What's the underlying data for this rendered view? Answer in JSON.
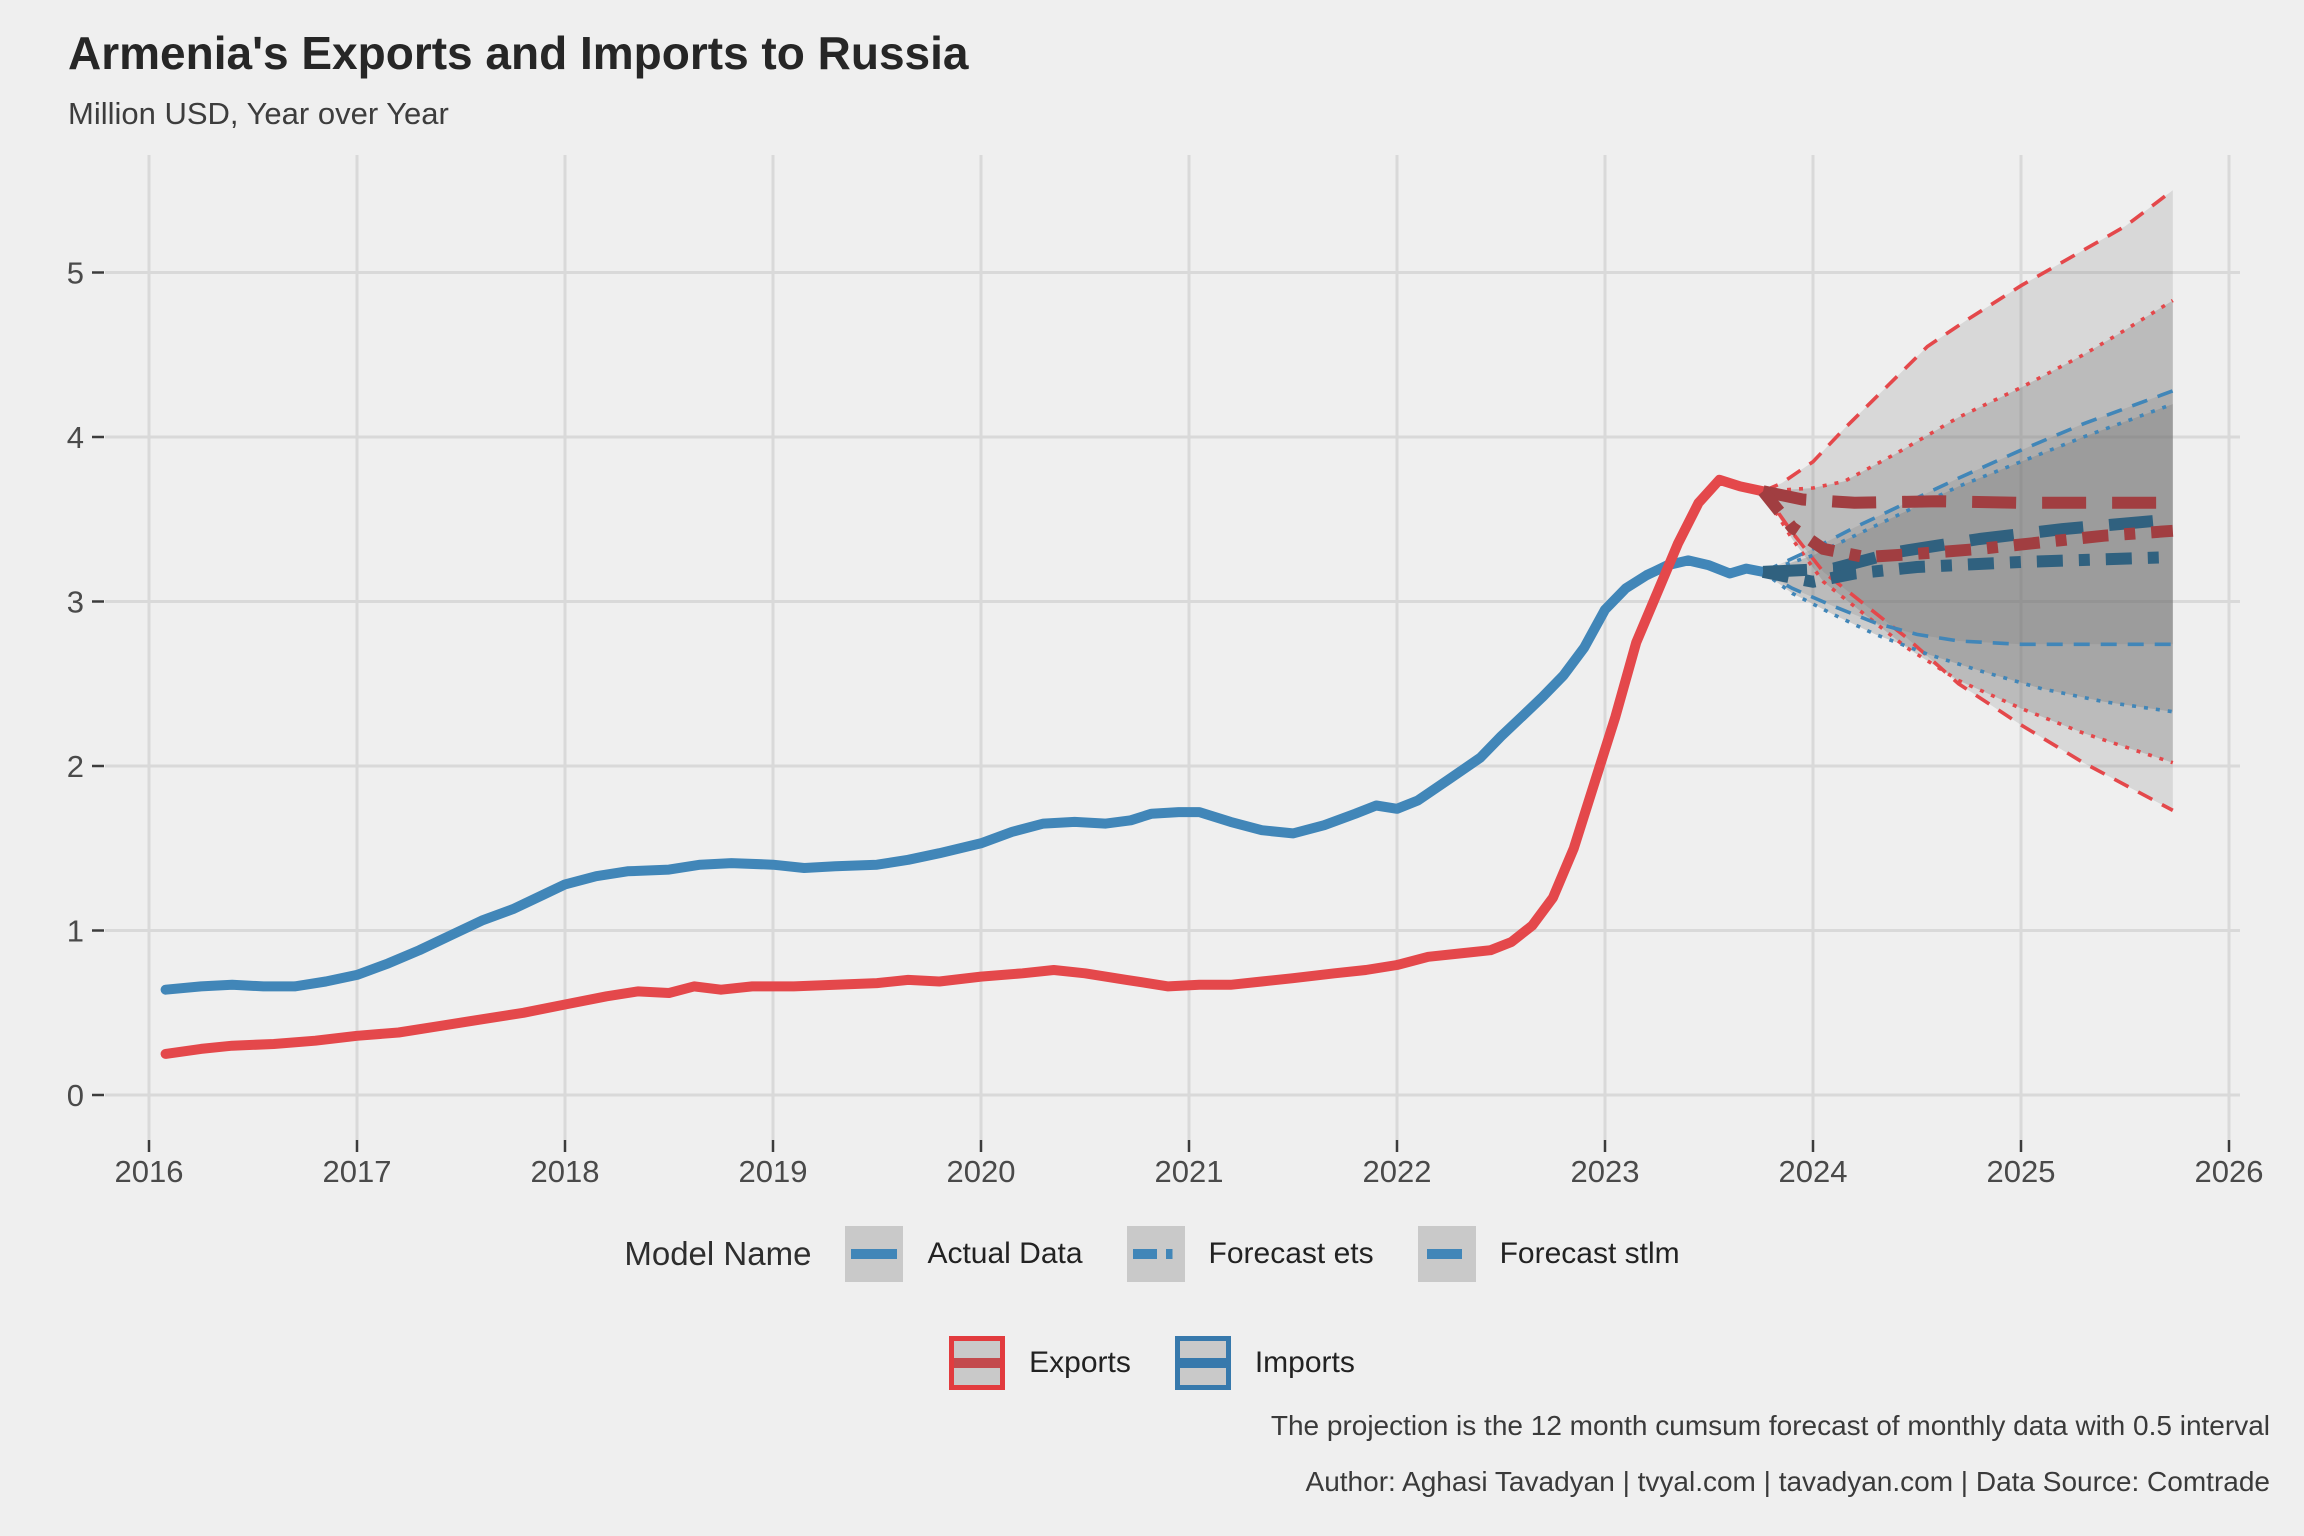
{
  "header": {
    "title": "Armenia's Exports and Imports to Russia",
    "subtitle": "Million USD, Year over Year"
  },
  "legend_models": {
    "title": "Model Name",
    "items": [
      {
        "label": "Actual Data",
        "style": "solid"
      },
      {
        "label": "Forecast ets",
        "style": "dash-dot"
      },
      {
        "label": "Forecast stlm",
        "style": "long-dash"
      }
    ]
  },
  "legend_flows": {
    "items": [
      {
        "label": "Exports",
        "color": "#E23B3E"
      },
      {
        "label": "Imports",
        "color": "#3779AC"
      }
    ]
  },
  "captions": {
    "note": "The projection is the 12 month cumsum forecast of monthly data with 0.5 interval",
    "credits": "Author: Aghasi Tavadyan   |   tvyal.com   |   tavadyan.com   |   Data Source: Comtrade"
  },
  "chart_data": {
    "type": "line",
    "title": "Armenia's Exports and Imports to Russia",
    "subtitle": "Million USD, Year over Year",
    "xlabel": "",
    "ylabel": "",
    "x_ticks": [
      2016,
      2017,
      2018,
      2019,
      2020,
      2021,
      2022,
      2023,
      2024,
      2025,
      2026
    ],
    "y_ticks": [
      0,
      1,
      2,
      3,
      4,
      5
    ],
    "xlim": [
      2015.79,
      2026.05
    ],
    "ylim": [
      -0.28,
      5.72
    ],
    "grid": "major-only",
    "legend_position": "bottom",
    "forecast_start": 2023.76,
    "forecast_end": 2025.73,
    "colors": {
      "exports": "#E4484B",
      "imports": "#4186B8",
      "exports_dark": "#A13E41",
      "imports_dark": "#30617F",
      "fan_fill": "#6E6E6E",
      "grid": "#D9D9D9",
      "background": "#EFEFEF",
      "axis_text": "#4A4A4A",
      "legend_key_bg": "#C9C9C9"
    },
    "series": [
      {
        "name": "Exports Actual Data",
        "points": [
          [
            2016.08,
            0.25
          ],
          [
            2016.25,
            0.28
          ],
          [
            2016.4,
            0.3
          ],
          [
            2016.6,
            0.31
          ],
          [
            2016.8,
            0.33
          ],
          [
            2017.0,
            0.36
          ],
          [
            2017.2,
            0.38
          ],
          [
            2017.4,
            0.42
          ],
          [
            2017.6,
            0.46
          ],
          [
            2017.8,
            0.5
          ],
          [
            2018.0,
            0.55
          ],
          [
            2018.2,
            0.6
          ],
          [
            2018.35,
            0.63
          ],
          [
            2018.5,
            0.62
          ],
          [
            2018.62,
            0.66
          ],
          [
            2018.75,
            0.64
          ],
          [
            2018.9,
            0.66
          ],
          [
            2019.1,
            0.66
          ],
          [
            2019.3,
            0.67
          ],
          [
            2019.5,
            0.68
          ],
          [
            2019.65,
            0.7
          ],
          [
            2019.8,
            0.69
          ],
          [
            2020.0,
            0.72
          ],
          [
            2020.2,
            0.74
          ],
          [
            2020.35,
            0.76
          ],
          [
            2020.5,
            0.74
          ],
          [
            2020.7,
            0.7
          ],
          [
            2020.9,
            0.66
          ],
          [
            2021.05,
            0.67
          ],
          [
            2021.2,
            0.67
          ],
          [
            2021.35,
            0.69
          ],
          [
            2021.5,
            0.71
          ],
          [
            2021.7,
            0.74
          ],
          [
            2021.85,
            0.76
          ],
          [
            2022.0,
            0.79
          ],
          [
            2022.15,
            0.84
          ],
          [
            2022.3,
            0.86
          ],
          [
            2022.45,
            0.88
          ],
          [
            2022.55,
            0.93
          ],
          [
            2022.65,
            1.03
          ],
          [
            2022.75,
            1.2
          ],
          [
            2022.85,
            1.5
          ],
          [
            2022.95,
            1.9
          ],
          [
            2023.05,
            2.3
          ],
          [
            2023.15,
            2.75
          ],
          [
            2023.25,
            3.05
          ],
          [
            2023.35,
            3.35
          ],
          [
            2023.45,
            3.6
          ],
          [
            2023.55,
            3.74
          ],
          [
            2023.65,
            3.7
          ],
          [
            2023.76,
            3.67
          ]
        ]
      },
      {
        "name": "Imports Actual Data",
        "points": [
          [
            2016.08,
            0.64
          ],
          [
            2016.25,
            0.66
          ],
          [
            2016.4,
            0.67
          ],
          [
            2016.55,
            0.66
          ],
          [
            2016.7,
            0.66
          ],
          [
            2016.85,
            0.69
          ],
          [
            2017.0,
            0.73
          ],
          [
            2017.15,
            0.8
          ],
          [
            2017.3,
            0.88
          ],
          [
            2017.45,
            0.97
          ],
          [
            2017.6,
            1.06
          ],
          [
            2017.75,
            1.13
          ],
          [
            2017.9,
            1.22
          ],
          [
            2018.0,
            1.28
          ],
          [
            2018.15,
            1.33
          ],
          [
            2018.3,
            1.36
          ],
          [
            2018.5,
            1.37
          ],
          [
            2018.65,
            1.4
          ],
          [
            2018.8,
            1.41
          ],
          [
            2019.0,
            1.4
          ],
          [
            2019.15,
            1.38
          ],
          [
            2019.3,
            1.39
          ],
          [
            2019.5,
            1.4
          ],
          [
            2019.65,
            1.43
          ],
          [
            2019.8,
            1.47
          ],
          [
            2020.0,
            1.53
          ],
          [
            2020.15,
            1.6
          ],
          [
            2020.3,
            1.65
          ],
          [
            2020.45,
            1.66
          ],
          [
            2020.6,
            1.65
          ],
          [
            2020.72,
            1.67
          ],
          [
            2020.82,
            1.71
          ],
          [
            2020.95,
            1.72
          ],
          [
            2021.05,
            1.72
          ],
          [
            2021.2,
            1.66
          ],
          [
            2021.35,
            1.61
          ],
          [
            2021.5,
            1.59
          ],
          [
            2021.65,
            1.64
          ],
          [
            2021.8,
            1.71
          ],
          [
            2021.9,
            1.76
          ],
          [
            2022.0,
            1.74
          ],
          [
            2022.1,
            1.79
          ],
          [
            2022.25,
            1.92
          ],
          [
            2022.4,
            2.05
          ],
          [
            2022.5,
            2.18
          ],
          [
            2022.6,
            2.3
          ],
          [
            2022.7,
            2.42
          ],
          [
            2022.8,
            2.55
          ],
          [
            2022.9,
            2.72
          ],
          [
            2023.0,
            2.95
          ],
          [
            2023.1,
            3.08
          ],
          [
            2023.2,
            3.16
          ],
          [
            2023.3,
            3.22
          ],
          [
            2023.4,
            3.25
          ],
          [
            2023.5,
            3.22
          ],
          [
            2023.6,
            3.17
          ],
          [
            2023.68,
            3.2
          ],
          [
            2023.76,
            3.18
          ]
        ]
      }
    ],
    "forecasts": {
      "exports": {
        "ets": {
          "upper": [
            [
              2023.76,
              3.67
            ],
            [
              2023.85,
              3.72
            ],
            [
              2024.0,
              3.85
            ],
            [
              2024.15,
              4.05
            ],
            [
              2024.35,
              4.3
            ],
            [
              2024.55,
              4.55
            ],
            [
              2024.75,
              4.72
            ],
            [
              2025.0,
              4.92
            ],
            [
              2025.25,
              5.1
            ],
            [
              2025.5,
              5.28
            ],
            [
              2025.73,
              5.5
            ]
          ],
          "lower": [
            [
              2023.76,
              3.67
            ],
            [
              2023.9,
              3.42
            ],
            [
              2024.05,
              3.18
            ],
            [
              2024.25,
              2.98
            ],
            [
              2024.45,
              2.78
            ],
            [
              2024.7,
              2.5
            ],
            [
              2025.0,
              2.25
            ],
            [
              2025.3,
              2.02
            ],
            [
              2025.73,
              1.73
            ]
          ],
          "center": [
            [
              2023.76,
              3.67
            ],
            [
              2023.9,
              3.45
            ],
            [
              2024.05,
              3.32
            ],
            [
              2024.25,
              3.27
            ],
            [
              2024.5,
              3.29
            ],
            [
              2024.8,
              3.32
            ],
            [
              2025.1,
              3.36
            ],
            [
              2025.4,
              3.4
            ],
            [
              2025.73,
              3.43
            ]
          ]
        },
        "stlm": {
          "upper": [
            [
              2023.76,
              3.67
            ],
            [
              2024.0,
              3.69
            ],
            [
              2024.15,
              3.73
            ],
            [
              2024.4,
              3.9
            ],
            [
              2024.7,
              4.12
            ],
            [
              2025.0,
              4.3
            ],
            [
              2025.3,
              4.5
            ],
            [
              2025.5,
              4.65
            ],
            [
              2025.73,
              4.83
            ]
          ],
          "lower": [
            [
              2023.76,
              3.67
            ],
            [
              2023.9,
              3.38
            ],
            [
              2024.05,
              3.12
            ],
            [
              2024.25,
              2.92
            ],
            [
              2024.45,
              2.72
            ],
            [
              2024.7,
              2.52
            ],
            [
              2025.0,
              2.35
            ],
            [
              2025.3,
              2.2
            ],
            [
              2025.73,
              2.02
            ]
          ],
          "center": [
            [
              2023.76,
              3.67
            ],
            [
              2023.95,
              3.62
            ],
            [
              2024.2,
              3.6
            ],
            [
              2024.6,
              3.61
            ],
            [
              2025.0,
              3.6
            ],
            [
              2025.4,
              3.6
            ],
            [
              2025.73,
              3.6
            ]
          ]
        }
      },
      "imports": {
        "ets": {
          "upper": [
            [
              2023.76,
              3.18
            ],
            [
              2024.0,
              3.32
            ],
            [
              2024.2,
              3.45
            ],
            [
              2024.45,
              3.6
            ],
            [
              2024.7,
              3.75
            ],
            [
              2025.0,
              3.92
            ],
            [
              2025.3,
              4.08
            ],
            [
              2025.73,
              4.28
            ]
          ],
          "lower": [
            [
              2023.76,
              3.18
            ],
            [
              2023.9,
              3.08
            ],
            [
              2024.1,
              2.97
            ],
            [
              2024.3,
              2.87
            ],
            [
              2024.5,
              2.8
            ],
            [
              2024.7,
              2.76
            ],
            [
              2025.0,
              2.74
            ],
            [
              2025.3,
              2.74
            ],
            [
              2025.73,
              2.74
            ]
          ],
          "center": [
            [
              2023.76,
              3.18
            ],
            [
              2024.0,
              3.12
            ],
            [
              2024.2,
              3.17
            ],
            [
              2024.5,
              3.21
            ],
            [
              2025.0,
              3.24
            ],
            [
              2025.73,
              3.27
            ]
          ]
        },
        "stlm": {
          "upper": [
            [
              2023.76,
              3.18
            ],
            [
              2024.0,
              3.28
            ],
            [
              2024.2,
              3.4
            ],
            [
              2024.45,
              3.55
            ],
            [
              2024.7,
              3.7
            ],
            [
              2025.0,
              3.85
            ],
            [
              2025.3,
              4.0
            ],
            [
              2025.73,
              4.2
            ]
          ],
          "lower": [
            [
              2023.76,
              3.18
            ],
            [
              2023.9,
              3.05
            ],
            [
              2024.1,
              2.92
            ],
            [
              2024.3,
              2.8
            ],
            [
              2024.55,
              2.68
            ],
            [
              2024.8,
              2.58
            ],
            [
              2025.1,
              2.47
            ],
            [
              2025.4,
              2.39
            ],
            [
              2025.73,
              2.33
            ]
          ],
          "center": [
            [
              2023.76,
              3.18
            ],
            [
              2024.1,
              3.2
            ],
            [
              2024.4,
              3.3
            ],
            [
              2024.8,
              3.38
            ],
            [
              2025.2,
              3.44
            ],
            [
              2025.73,
              3.5
            ]
          ]
        }
      }
    },
    "annotations": [
      "The projection is the 12 month cumsum forecast of monthly data with 0.5 interval",
      "Author: Aghasi Tavadyan | tvyal.com | tavadyan.com | Data Source: Comtrade"
    ]
  }
}
